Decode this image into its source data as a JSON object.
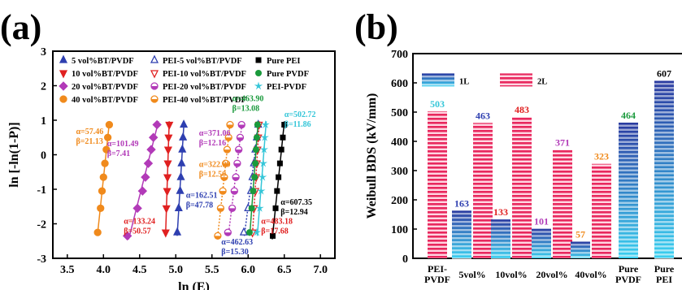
{
  "panel_labels": [
    "(a)",
    "(b)"
  ],
  "colors": {
    "bt5": "#2e3fb0",
    "bt10": "#e02020",
    "bt20": "#b23ab8",
    "bt40": "#f08a1c",
    "pure_pei": "#000000",
    "pure_pvdf": "#1a9a3c",
    "pei_pvdf": "#35c6d8",
    "bar_2L": "#e8285e",
    "bar_1L_top": "#2a3aa0",
    "bar_1L_bottom": "#3ad0f0"
  },
  "chart_data": [
    {
      "type": "scatter",
      "panel": "(a)",
      "xlabel": "ln (E)",
      "ylabel": "ln [-ln(1-P)]",
      "xlim": [
        3.3,
        7.2
      ],
      "ylim": [
        -3,
        3
      ],
      "xticks": [
        "3.5",
        "4.0",
        "4.5",
        "5.0",
        "5.5",
        "6.0",
        "6.5",
        "7.0"
      ],
      "yticks": [
        "-3",
        "-2",
        "-1",
        "0",
        "1",
        "2",
        "3"
      ],
      "legend_placement": "top",
      "series": [
        {
          "name": "5 vol%BT/PVDF",
          "key": "bt5",
          "marker": "triangle-up",
          "line": "solid",
          "x": [
            5.02,
            5.04,
            5.06,
            5.07,
            5.08,
            5.09,
            5.1,
            5.11
          ],
          "y": [
            -2.25,
            -1.55,
            -1.05,
            -0.65,
            -0.25,
            0.15,
            0.5,
            0.87
          ]
        },
        {
          "name": "10 vol%BT/PVDF",
          "key": "bt10",
          "marker": "triangle-down",
          "line": "solid",
          "x": [
            4.86,
            4.87,
            4.88,
            4.885,
            4.89,
            4.895,
            4.9,
            4.91
          ],
          "y": [
            -2.25,
            -1.55,
            -1.05,
            -0.65,
            -0.25,
            0.15,
            0.5,
            0.87
          ]
        },
        {
          "name": "20 vol%BT/PVDF",
          "key": "bt20",
          "marker": "diamond",
          "line": "solid",
          "x": [
            4.33,
            4.47,
            4.54,
            4.58,
            4.62,
            4.66,
            4.69,
            4.74
          ],
          "y": [
            -2.35,
            -1.55,
            -1.05,
            -0.65,
            -0.25,
            0.15,
            0.5,
            0.87
          ]
        },
        {
          "name": "40 vol%BT/PVDF",
          "key": "bt40",
          "marker": "circle-half",
          "line": "solid",
          "x": [
            3.92,
            3.96,
            3.98,
            4.0,
            4.02,
            4.04,
            4.06,
            4.08
          ],
          "y": [
            -2.25,
            -1.55,
            -1.05,
            -0.65,
            -0.25,
            0.15,
            0.5,
            0.87
          ]
        },
        {
          "name": "PEI-5 vol%BT/PVDF",
          "key": "bt5",
          "marker": "triangle-up-open",
          "line": "dotted",
          "x": [
            5.94,
            6.0,
            6.04,
            6.06,
            6.08,
            6.1,
            6.12,
            6.14
          ],
          "y": [
            -2.25,
            -1.55,
            -1.05,
            -0.65,
            -0.25,
            0.15,
            0.5,
            0.87
          ]
        },
        {
          "name": "PEI-10 vol%BT/PVDF",
          "key": "bt10",
          "marker": "triangle-down-open",
          "line": "dotted",
          "x": [
            6.06,
            6.08,
            6.1,
            6.11,
            6.12,
            6.13,
            6.14,
            6.15
          ],
          "y": [
            -2.25,
            -1.55,
            -1.05,
            -0.65,
            -0.25,
            0.15,
            0.5,
            0.87
          ]
        },
        {
          "name": "PEI-20 vol%BT/PVDF",
          "key": "bt20",
          "marker": "circle-half-open",
          "line": "dotted",
          "x": [
            5.72,
            5.78,
            5.81,
            5.83,
            5.85,
            5.87,
            5.89,
            5.91
          ],
          "y": [
            -2.25,
            -1.55,
            -1.05,
            -0.65,
            -0.25,
            0.15,
            0.5,
            0.87
          ]
        },
        {
          "name": "PEI-40 vol%BT/PVDF",
          "key": "bt40",
          "marker": "circle-half-open",
          "line": "dotted",
          "x": [
            5.58,
            5.62,
            5.65,
            5.67,
            5.69,
            5.71,
            5.73,
            5.75
          ],
          "y": [
            -2.35,
            -1.55,
            -1.05,
            -0.65,
            -0.25,
            0.15,
            0.5,
            0.87
          ]
        },
        {
          "name": "Pure PEI",
          "key": "pure_pei",
          "marker": "square",
          "line": "solid",
          "x": [
            6.34,
            6.38,
            6.4,
            6.42,
            6.44,
            6.46,
            6.48,
            6.5
          ],
          "y": [
            -2.35,
            -1.55,
            -1.05,
            -0.65,
            -0.25,
            0.15,
            0.5,
            0.87
          ]
        },
        {
          "name": "Pure PVDF",
          "key": "pure_pvdf",
          "marker": "circle",
          "line": "solid",
          "x": [
            6.02,
            6.05,
            6.07,
            6.09,
            6.1,
            6.11,
            6.12,
            6.13
          ],
          "y": [
            -2.25,
            -1.55,
            -1.05,
            -0.65,
            -0.25,
            0.15,
            0.5,
            0.87
          ]
        },
        {
          "name": "PEI-PVDF",
          "key": "pei_pvdf",
          "marker": "star",
          "line": "solid",
          "x": [
            6.12,
            6.16,
            6.18,
            6.2,
            6.21,
            6.22,
            6.23,
            6.24
          ],
          "y": [
            -2.25,
            -1.55,
            -1.05,
            -0.65,
            -0.25,
            0.15,
            0.5,
            0.87
          ]
        }
      ],
      "annotations": [
        {
          "text": [
            "α=57.46",
            "β=21.13"
          ],
          "key": "bt40",
          "x": 3.62,
          "y": 0.6
        },
        {
          "text": [
            "α=101.49",
            "β=7.41"
          ],
          "key": "bt20",
          "x": 4.05,
          "y": 0.25
        },
        {
          "text": [
            "α=133.24",
            "β=50.57"
          ],
          "key": "bt10",
          "x": 4.28,
          "y": -2.0
        },
        {
          "text": [
            "α=162.51",
            "β=47.78"
          ],
          "key": "bt5",
          "x": 5.14,
          "y": -1.25
        },
        {
          "text": [
            "α=371.06",
            "β=12.16"
          ],
          "key": "bt20",
          "x": 5.32,
          "y": 0.55
        },
        {
          "text": [
            "α=322.99",
            "β=12.50"
          ],
          "key": "bt40",
          "x": 5.32,
          "y": -0.35
        },
        {
          "text": [
            "α=463.90",
            "β=13.08"
          ],
          "key": "pure_pvdf",
          "x": 5.78,
          "y": 1.55
        },
        {
          "text": [
            "α=502.72",
            "β=11.86"
          ],
          "key": "pei_pvdf",
          "x": 6.5,
          "y": 1.1
        },
        {
          "text": [
            "α=607.35",
            "β=12.94"
          ],
          "key": "pure_pei",
          "x": 6.45,
          "y": -1.45
        },
        {
          "text": [
            "α=483.18",
            "β=17.68"
          ],
          "key": "bt10",
          "x": 6.18,
          "y": -2.0
        },
        {
          "text": [
            "α=462.63",
            "β=15.30"
          ],
          "key": "bt5",
          "x": 5.63,
          "y": -2.6
        }
      ]
    },
    {
      "type": "bar",
      "panel": "(b)",
      "ylabel": "Weibull BDS (kV/mm)",
      "ylim": [
        0,
        700
      ],
      "yticks": [
        "0",
        "100",
        "200",
        "300",
        "400",
        "500",
        "600",
        "700"
      ],
      "legend": [
        "1L",
        "2L"
      ],
      "legend_placement": "top-left",
      "categories": [
        [
          "PEI-",
          "PVDF"
        ],
        [
          "5vol%"
        ],
        [
          "10vol%"
        ],
        [
          "20vol%"
        ],
        [
          "40vol%"
        ],
        [
          "Pure",
          "PVDF"
        ],
        [
          "Pure",
          "PEI"
        ]
      ],
      "bars": [
        {
          "group": 0,
          "series": "2L",
          "value": 503,
          "label": "503",
          "label_key": "pei_pvdf"
        },
        {
          "group": 1,
          "series": "1L",
          "value": 163,
          "label": "163",
          "label_key": "bt5"
        },
        {
          "group": 1,
          "series": "2L",
          "value": 463,
          "label": "463",
          "label_key": "bt5"
        },
        {
          "group": 2,
          "series": "1L",
          "value": 133,
          "label": "133",
          "label_key": "bt10"
        },
        {
          "group": 2,
          "series": "2L",
          "value": 483,
          "label": "483",
          "label_key": "bt10"
        },
        {
          "group": 3,
          "series": "1L",
          "value": 101,
          "label": "101",
          "label_key": "bt20"
        },
        {
          "group": 3,
          "series": "2L",
          "value": 371,
          "label": "371",
          "label_key": "bt20"
        },
        {
          "group": 4,
          "series": "1L",
          "value": 57,
          "label": "57",
          "label_key": "bt40"
        },
        {
          "group": 4,
          "series": "2L",
          "value": 323,
          "label": "323",
          "label_key": "bt40"
        },
        {
          "group": 5,
          "series": "1L",
          "value": 464,
          "label": "464",
          "label_key": "pure_pvdf"
        },
        {
          "group": 6,
          "series": "1L",
          "value": 607,
          "label": "607",
          "label_key": "pure_pei"
        }
      ]
    }
  ]
}
